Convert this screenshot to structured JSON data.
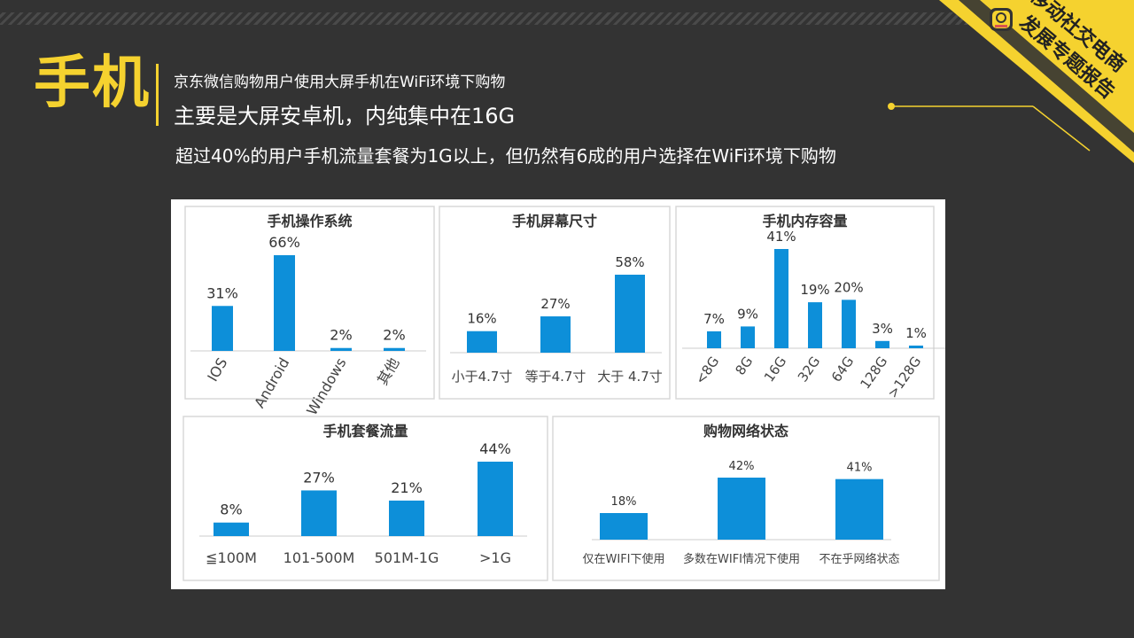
{
  "header": {
    "title": "手机",
    "subtitle_small": "京东微信购物用户使用大屏手机在WiFi环境下购物",
    "subtitle_large": "主要是大屏安卓机，内纯集中在16G",
    "description": "超过40%的用户手机流量套餐为1G以上，但仍然有6成的用户选择在WiFi环境下购物"
  },
  "badge": {
    "line1": "移动社交电商",
    "line2": "发展专题报告"
  },
  "colors": {
    "accent": "#f5d22f",
    "background": "#333333",
    "bar": "#0d8fd9"
  },
  "chart_data": [
    {
      "type": "bar",
      "title": "手机操作系统",
      "categories": [
        "IOS",
        "Android",
        "Windows",
        "其他"
      ],
      "values": [
        31,
        66,
        2,
        2
      ],
      "labels": [
        "31%",
        "66%",
        "2%",
        "2%"
      ]
    },
    {
      "type": "bar",
      "title": "手机屏幕尺寸",
      "categories": [
        "小于4.7寸",
        "等于4.7寸",
        "大于 4.7寸"
      ],
      "values": [
        16,
        27,
        58
      ],
      "labels": [
        "16%",
        "27%",
        "58%"
      ]
    },
    {
      "type": "bar",
      "title": "手机内存容量",
      "categories": [
        "<8G",
        "8G",
        "16G",
        "32G",
        "64G",
        "128G",
        ">128G"
      ],
      "values": [
        7,
        9,
        41,
        19,
        20,
        3,
        1
      ],
      "labels": [
        "7%",
        "9%",
        "41%",
        "19%",
        "20%",
        "3%",
        "1%"
      ]
    },
    {
      "type": "bar",
      "title": "手机套餐流量",
      "categories": [
        "≦100M",
        "101-500M",
        "501M-1G",
        ">1G"
      ],
      "values": [
        8,
        27,
        21,
        44
      ],
      "labels": [
        "8%",
        "27%",
        "21%",
        "44%"
      ]
    },
    {
      "type": "bar",
      "title": "购物网络状态",
      "categories": [
        "仅在WIFI下使用",
        "多数在WIFI情况下使用",
        "不在乎网络状态"
      ],
      "values": [
        18,
        42,
        41
      ],
      "labels": [
        "18%",
        "42%",
        "41%"
      ]
    }
  ]
}
